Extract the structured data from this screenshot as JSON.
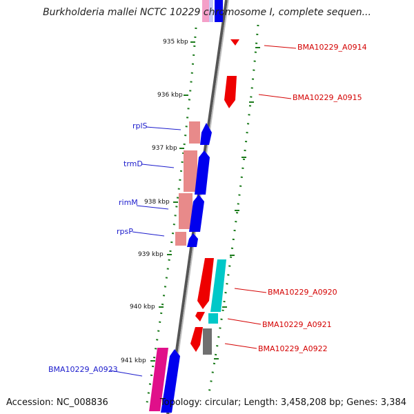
{
  "title": "Burkholderia mallei NCTC 10229 chromosome I, complete sequen...",
  "footer": {
    "accession": "Accession: NC_008836",
    "topology": "Topology: circular; Length: 3,458,208 bp; Genes: 3,384"
  },
  "ticks": [
    "935 kbp",
    "936 kbp",
    "937 kbp",
    "938 kbp",
    "939 kbp",
    "940 kbp",
    "941 kbp"
  ],
  "genes_left": [
    {
      "label": "rplS",
      "color": "#1a1acc"
    },
    {
      "label": "trmD",
      "color": "#1a1acc"
    },
    {
      "label": "rimM",
      "color": "#1a1acc"
    },
    {
      "label": "rpsP",
      "color": "#1a1acc"
    },
    {
      "label": "BMA10229_A0923",
      "color": "#1a1acc"
    }
  ],
  "genes_right": [
    {
      "label": "BMA10229_A0914",
      "color": "#d40000"
    },
    {
      "label": "BMA10229_A0915",
      "color": "#d40000"
    },
    {
      "label": "BMA10229_A0920",
      "color": "#d40000"
    },
    {
      "label": "BMA10229_A0921",
      "color": "#d40000"
    },
    {
      "label": "BMA10229_A0922",
      "color": "#d40000"
    }
  ],
  "colors": {
    "forward_strand": "#0000ee",
    "forward_rna": "#e88a8a",
    "reverse_strand": "#ee0000",
    "cyan_feature": "#00c8c8",
    "magenta_feature": "#e0108a",
    "gray_feature": "#707070",
    "backbone": "#8a8a8a",
    "tick_dots": "#1a7a1a"
  }
}
